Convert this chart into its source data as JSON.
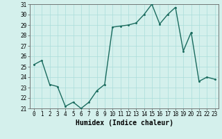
{
  "x": [
    0,
    1,
    2,
    3,
    4,
    5,
    6,
    7,
    8,
    9,
    10,
    11,
    12,
    13,
    14,
    15,
    16,
    17,
    18,
    19,
    20,
    21,
    22,
    23
  ],
  "y": [
    25.2,
    25.6,
    23.3,
    23.1,
    21.2,
    21.6,
    21.0,
    21.6,
    22.7,
    23.3,
    28.8,
    28.9,
    29.0,
    29.2,
    30.0,
    31.0,
    29.1,
    30.0,
    30.7,
    26.5,
    28.3,
    23.6,
    24.0,
    23.8
  ],
  "line_color": "#1a6b5e",
  "marker_color": "#1a6b5e",
  "bg_color": "#d4f0ec",
  "grid_color": "#aaddda",
  "xlabel": "Humidex (Indice chaleur)",
  "xlim": [
    -0.5,
    23.5
  ],
  "ylim": [
    21,
    31
  ],
  "yticks": [
    21,
    22,
    23,
    24,
    25,
    26,
    27,
    28,
    29,
    30,
    31
  ],
  "xticks": [
    0,
    1,
    2,
    3,
    4,
    5,
    6,
    7,
    8,
    9,
    10,
    11,
    12,
    13,
    14,
    15,
    16,
    17,
    18,
    19,
    20,
    21,
    22,
    23
  ],
  "tick_fontsize": 5.5,
  "xlabel_fontsize": 7.0,
  "line_width": 1.0,
  "marker_size": 2.2
}
